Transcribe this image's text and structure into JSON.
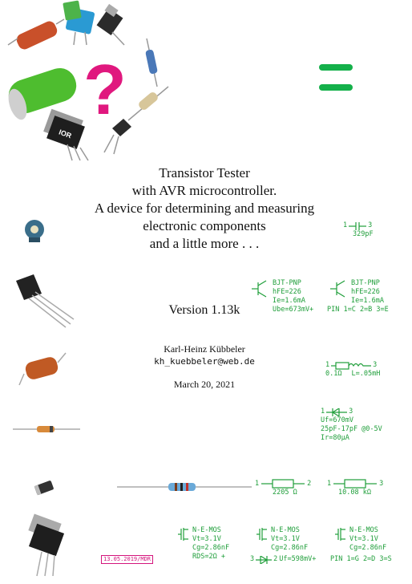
{
  "cover": {
    "question_mark": "?",
    "title_lines": [
      "Transistor Tester",
      "with AVR microcontroller.",
      "A device for determining and measuring",
      "electronic components",
      "and a little more . . ."
    ],
    "version": "Version 1.13k",
    "author": "Karl-Heinz Kübbeler",
    "email": "kh_kuebbeler@web.de",
    "date": "March 20, 2021",
    "stamp": "13.05.2019/MDR",
    "mosfet_label": "IOR"
  },
  "measurements": {
    "capacitor": {
      "pin_left": "1",
      "pin_right": "3",
      "value": "329pF"
    },
    "bjt_left": {
      "lines": [
        "BJT-PNP",
        "hFE=226",
        "Ie=1.6mA",
        "Ube=673mV+"
      ]
    },
    "bjt_right": {
      "lines": [
        "BJT-PNP",
        "hFE=226",
        "Ie=1.6mA",
        "PIN  1=C 2=B 3=E"
      ]
    },
    "inductor": {
      "pin_left": "1",
      "pin_right": "3",
      "value_r": "0.1Ω",
      "value_l": "L=.05mH"
    },
    "diode": {
      "pin_left": "1",
      "pin_right": "3",
      "lines": [
        "Uf=670mV",
        "25pF-17pF @0-5V",
        "Ir=80μA"
      ]
    },
    "resistor_left": {
      "pin_left": "1",
      "pin_right": "2",
      "value": "2205 Ω"
    },
    "resistor_right": {
      "pin_left": "1",
      "pin_right": "3",
      "value": "10.08 kΩ"
    },
    "mos_a": {
      "lines": [
        "N-E-MOS",
        "Vt=3.1V",
        "Cg=2.86nF",
        "RDS=2Ω  +"
      ]
    },
    "mos_b": {
      "lines": [
        "N-E-MOS",
        "Vt=3.1V",
        "Cg=2.86nF"
      ],
      "diode_line": "Uf=598mV+",
      "pin_left": "3",
      "pin_right": "2"
    },
    "mos_c": {
      "lines": [
        "N-E-MOS",
        "Vt=3.1V",
        "Cg=2.86nF",
        "PIN  1=G 2=D 3=S"
      ]
    }
  },
  "colors": {
    "accent_green": "#1f9e3a",
    "equals_green": "#14b04a",
    "question_magenta": "#e0187e"
  }
}
